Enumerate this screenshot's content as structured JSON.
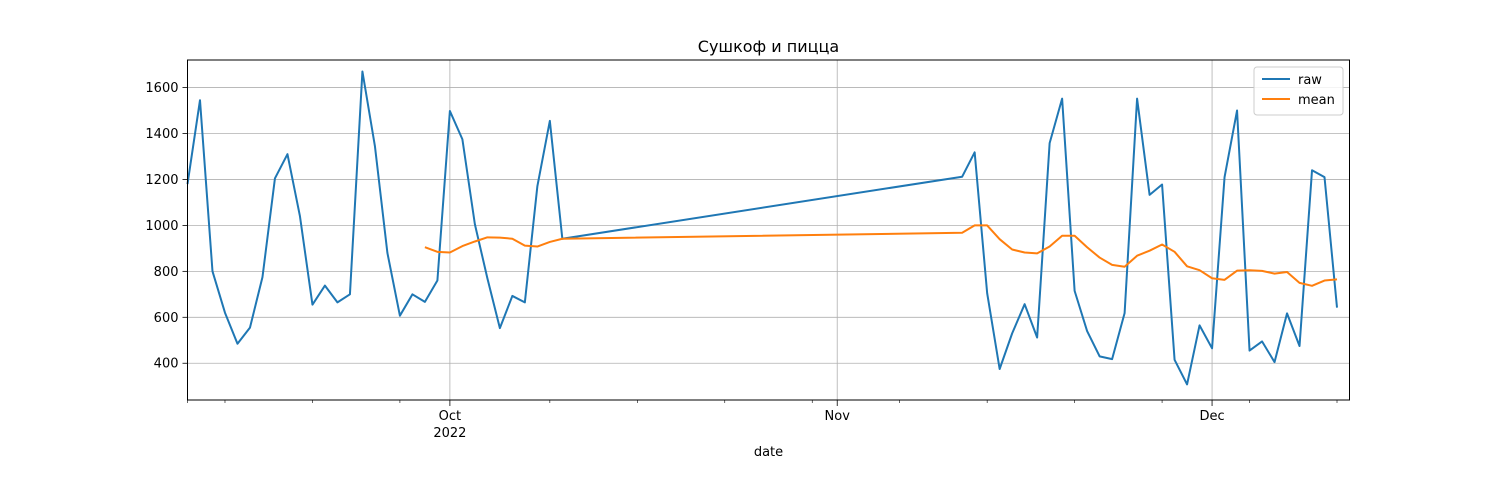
{
  "chart_data": {
    "type": "line",
    "title": "Сушкоф и пицца",
    "xlabel": "date",
    "ylabel": "",
    "ylim": [
      240,
      1720
    ],
    "xlim": [
      "2022-09-10",
      "2022-12-12"
    ],
    "yticks": [
      400,
      600,
      800,
      1000,
      1200,
      1400,
      1600
    ],
    "x_major_ticks": [
      {
        "date": "2022-10-01",
        "label": "Oct",
        "sublabel": "2022"
      },
      {
        "date": "2022-11-01",
        "label": "Nov",
        "sublabel": ""
      },
      {
        "date": "2022-12-01",
        "label": "Dec",
        "sublabel": ""
      }
    ],
    "x_minor_ticks": [
      "2022-09-10",
      "2022-09-13",
      "2022-09-20",
      "2022-09-27",
      "2022-10-09",
      "2022-10-16",
      "2022-10-23",
      "2022-10-30",
      "2022-11-06",
      "2022-11-13",
      "2022-11-20",
      "2022-11-27",
      "2022-12-04",
      "2022-12-11"
    ],
    "grid": true,
    "legend_position": "top-right",
    "series": [
      {
        "name": "raw",
        "color": "#1f77b4",
        "points": [
          [
            "2022-09-10",
            1180
          ],
          [
            "2022-09-11",
            1545
          ],
          [
            "2022-09-12",
            800
          ],
          [
            "2022-09-13",
            620
          ],
          [
            "2022-09-14",
            485
          ],
          [
            "2022-09-15",
            555
          ],
          [
            "2022-09-16",
            775
          ],
          [
            "2022-09-17",
            1205
          ],
          [
            "2022-09-18",
            1310
          ],
          [
            "2022-09-19",
            1040
          ],
          [
            "2022-09-20",
            655
          ],
          [
            "2022-09-21",
            738
          ],
          [
            "2022-09-22",
            665
          ],
          [
            "2022-09-23",
            700
          ],
          [
            "2022-09-24",
            1670
          ],
          [
            "2022-09-25",
            1345
          ],
          [
            "2022-09-26",
            880
          ],
          [
            "2022-09-27",
            607
          ],
          [
            "2022-09-28",
            700
          ],
          [
            "2022-09-29",
            667
          ],
          [
            "2022-09-30",
            760
          ],
          [
            "2022-10-01",
            1498
          ],
          [
            "2022-10-02",
            1375
          ],
          [
            "2022-10-03",
            1005
          ],
          [
            "2022-10-04",
            770
          ],
          [
            "2022-10-05",
            553
          ],
          [
            "2022-10-06",
            693
          ],
          [
            "2022-10-07",
            665
          ],
          [
            "2022-10-08",
            1170
          ],
          [
            "2022-10-09",
            1455
          ],
          [
            "2022-10-10",
            942
          ],
          [
            "2022-11-11",
            1212
          ],
          [
            "2022-11-12",
            1318
          ],
          [
            "2022-11-13",
            705
          ],
          [
            "2022-11-14",
            375
          ],
          [
            "2022-11-15",
            530
          ],
          [
            "2022-11-16",
            657
          ],
          [
            "2022-11-17",
            512
          ],
          [
            "2022-11-18",
            1358
          ],
          [
            "2022-11-19",
            1552
          ],
          [
            "2022-11-20",
            715
          ],
          [
            "2022-11-21",
            540
          ],
          [
            "2022-11-22",
            430
          ],
          [
            "2022-11-23",
            418
          ],
          [
            "2022-11-24",
            618
          ],
          [
            "2022-11-25",
            1552
          ],
          [
            "2022-11-26",
            1133
          ],
          [
            "2022-11-27",
            1178
          ],
          [
            "2022-11-28",
            415
          ],
          [
            "2022-11-29",
            308
          ],
          [
            "2022-11-30",
            565
          ],
          [
            "2022-12-01",
            465
          ],
          [
            "2022-12-02",
            1210
          ],
          [
            "2022-12-03",
            1500
          ],
          [
            "2022-12-04",
            455
          ],
          [
            "2022-12-05",
            495
          ],
          [
            "2022-12-06",
            405
          ],
          [
            "2022-12-07",
            617
          ],
          [
            "2022-12-08",
            475
          ],
          [
            "2022-12-09",
            1240
          ],
          [
            "2022-12-10",
            1210
          ],
          [
            "2022-12-11",
            642
          ]
        ]
      },
      {
        "name": "mean",
        "color": "#ff7f0e",
        "points": [
          [
            "2022-09-29",
            905
          ],
          [
            "2022-09-30",
            885
          ],
          [
            "2022-10-01",
            882
          ],
          [
            "2022-10-02",
            910
          ],
          [
            "2022-10-03",
            930
          ],
          [
            "2022-10-04",
            948
          ],
          [
            "2022-10-05",
            947
          ],
          [
            "2022-10-06",
            942
          ],
          [
            "2022-10-07",
            912
          ],
          [
            "2022-10-08",
            908
          ],
          [
            "2022-10-09",
            928
          ],
          [
            "2022-10-10",
            942
          ],
          [
            "2022-11-11",
            968
          ],
          [
            "2022-11-12",
            1000
          ],
          [
            "2022-11-13",
            1000
          ],
          [
            "2022-11-14",
            940
          ],
          [
            "2022-11-15",
            895
          ],
          [
            "2022-11-16",
            882
          ],
          [
            "2022-11-17",
            878
          ],
          [
            "2022-11-18",
            908
          ],
          [
            "2022-11-19",
            955
          ],
          [
            "2022-11-20",
            955
          ],
          [
            "2022-11-21",
            905
          ],
          [
            "2022-11-22",
            860
          ],
          [
            "2022-11-23",
            828
          ],
          [
            "2022-11-24",
            820
          ],
          [
            "2022-11-25",
            868
          ],
          [
            "2022-11-26",
            890
          ],
          [
            "2022-11-27",
            917
          ],
          [
            "2022-11-28",
            885
          ],
          [
            "2022-11-29",
            822
          ],
          [
            "2022-11-30",
            805
          ],
          [
            "2022-12-01",
            770
          ],
          [
            "2022-12-02",
            763
          ],
          [
            "2022-12-03",
            803
          ],
          [
            "2022-12-04",
            805
          ],
          [
            "2022-12-05",
            802
          ],
          [
            "2022-12-06",
            790
          ],
          [
            "2022-12-07",
            797
          ],
          [
            "2022-12-08",
            750
          ],
          [
            "2022-12-09",
            737
          ],
          [
            "2022-12-10",
            760
          ],
          [
            "2022-12-11",
            765
          ]
        ]
      }
    ]
  }
}
